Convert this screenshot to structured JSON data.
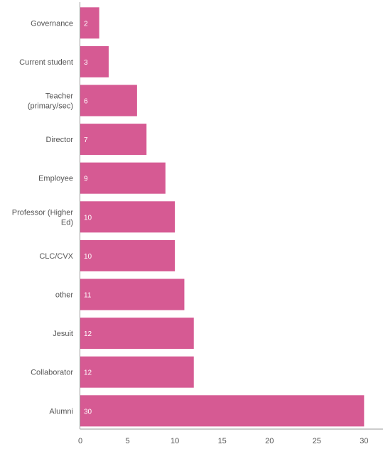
{
  "chart_data": {
    "type": "bar",
    "orientation": "horizontal",
    "title": "",
    "xlabel": "",
    "ylabel": "",
    "categories": [
      [
        "Governance"
      ],
      [
        "Current student"
      ],
      [
        "Teacher",
        "(primary/sec)"
      ],
      [
        "Director"
      ],
      [
        "Employee"
      ],
      [
        "Professor (Higher",
        "Ed)"
      ],
      [
        "CLC/CVX"
      ],
      [
        "other"
      ],
      [
        "Jesuit"
      ],
      [
        "Collaborator"
      ],
      [
        "Alumni"
      ]
    ],
    "values": [
      2,
      3,
      6,
      7,
      9,
      10,
      10,
      11,
      12,
      12,
      30
    ],
    "data_labels": [
      "2",
      "3",
      "6",
      "7",
      "9",
      "10",
      "10",
      "11",
      "12",
      "12",
      "30"
    ],
    "xlim": [
      0,
      32
    ],
    "xticks": [
      0,
      5,
      10,
      15,
      20,
      25,
      30
    ],
    "xtick_labels": [
      "0",
      "5",
      "10",
      "15",
      "20",
      "25",
      "30"
    ],
    "grid": false,
    "legend": "none",
    "bar_color": "#d65a93",
    "axis_color": "#999999",
    "text_color": "#555555"
  }
}
